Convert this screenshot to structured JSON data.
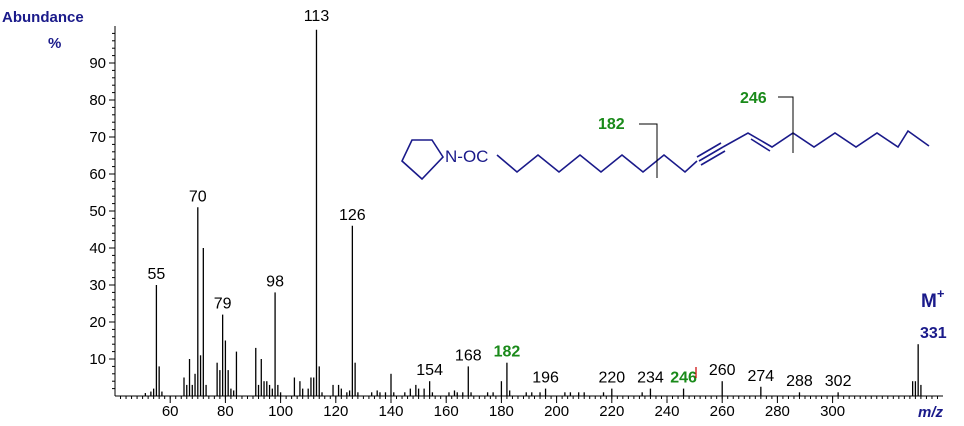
{
  "chart_data": {
    "type": "bar",
    "ylabel": "Abundance",
    "ylabel_unit": "%",
    "xlabel": "m/z",
    "xlim": [
      40,
      340
    ],
    "ylim": [
      0,
      100
    ],
    "x_ticks": [
      60,
      80,
      100,
      120,
      140,
      160,
      180,
      200,
      220,
      240,
      260,
      280,
      300
    ],
    "y_ticks": [
      10,
      20,
      30,
      40,
      50,
      60,
      70,
      80,
      90
    ],
    "peaks": [
      {
        "mz": 51,
        "y": 0.8
      },
      {
        "mz": 53,
        "y": 1.2
      },
      {
        "mz": 54,
        "y": 2.0
      },
      {
        "mz": 55,
        "y": 30
      },
      {
        "mz": 56,
        "y": 8
      },
      {
        "mz": 57,
        "y": 1.2
      },
      {
        "mz": 65,
        "y": 5
      },
      {
        "mz": 66,
        "y": 3
      },
      {
        "mz": 67,
        "y": 10
      },
      {
        "mz": 68,
        "y": 3
      },
      {
        "mz": 69,
        "y": 6
      },
      {
        "mz": 70,
        "y": 51
      },
      {
        "mz": 71,
        "y": 11
      },
      {
        "mz": 72,
        "y": 40
      },
      {
        "mz": 73,
        "y": 3
      },
      {
        "mz": 77,
        "y": 9
      },
      {
        "mz": 78,
        "y": 7
      },
      {
        "mz": 79,
        "y": 22
      },
      {
        "mz": 80,
        "y": 15
      },
      {
        "mz": 81,
        "y": 7
      },
      {
        "mz": 82,
        "y": 2
      },
      {
        "mz": 83,
        "y": 1.5
      },
      {
        "mz": 84,
        "y": 12
      },
      {
        "mz": 91,
        "y": 13
      },
      {
        "mz": 92,
        "y": 3
      },
      {
        "mz": 93,
        "y": 10
      },
      {
        "mz": 94,
        "y": 4
      },
      {
        "mz": 95,
        "y": 4
      },
      {
        "mz": 96,
        "y": 3
      },
      {
        "mz": 97,
        "y": 2
      },
      {
        "mz": 98,
        "y": 28
      },
      {
        "mz": 99,
        "y": 3
      },
      {
        "mz": 100,
        "y": 1
      },
      {
        "mz": 105,
        "y": 5
      },
      {
        "mz": 107,
        "y": 4
      },
      {
        "mz": 108,
        "y": 2
      },
      {
        "mz": 110,
        "y": 2
      },
      {
        "mz": 111,
        "y": 5
      },
      {
        "mz": 112,
        "y": 5
      },
      {
        "mz": 113,
        "y": 99
      },
      {
        "mz": 114,
        "y": 8
      },
      {
        "mz": 115,
        "y": 1
      },
      {
        "mz": 119,
        "y": 3
      },
      {
        "mz": 121,
        "y": 3
      },
      {
        "mz": 122,
        "y": 2
      },
      {
        "mz": 124,
        "y": 1
      },
      {
        "mz": 125,
        "y": 1.5
      },
      {
        "mz": 126,
        "y": 46
      },
      {
        "mz": 127,
        "y": 9
      },
      {
        "mz": 128,
        "y": 1
      },
      {
        "mz": 133,
        "y": 1
      },
      {
        "mz": 135,
        "y": 1.5
      },
      {
        "mz": 136,
        "y": 1
      },
      {
        "mz": 138,
        "y": 1
      },
      {
        "mz": 140,
        "y": 6
      },
      {
        "mz": 141,
        "y": 1
      },
      {
        "mz": 145,
        "y": 1
      },
      {
        "mz": 147,
        "y": 2
      },
      {
        "mz": 149,
        "y": 3
      },
      {
        "mz": 150,
        "y": 2
      },
      {
        "mz": 152,
        "y": 2
      },
      {
        "mz": 154,
        "y": 4
      },
      {
        "mz": 155,
        "y": 1
      },
      {
        "mz": 161,
        "y": 1
      },
      {
        "mz": 163,
        "y": 1.5
      },
      {
        "mz": 164,
        "y": 1
      },
      {
        "mz": 166,
        "y": 1
      },
      {
        "mz": 168,
        "y": 8
      },
      {
        "mz": 169,
        "y": 1
      },
      {
        "mz": 175,
        "y": 1
      },
      {
        "mz": 177,
        "y": 1
      },
      {
        "mz": 180,
        "y": 4
      },
      {
        "mz": 182,
        "y": 9
      },
      {
        "mz": 183,
        "y": 1.5
      },
      {
        "mz": 189,
        "y": 1
      },
      {
        "mz": 191,
        "y": 1
      },
      {
        "mz": 194,
        "y": 1
      },
      {
        "mz": 196,
        "y": 2
      },
      {
        "mz": 203,
        "y": 1
      },
      {
        "mz": 205,
        "y": 1
      },
      {
        "mz": 208,
        "y": 1
      },
      {
        "mz": 210,
        "y": 1
      },
      {
        "mz": 217,
        "y": 1
      },
      {
        "mz": 220,
        "y": 2
      },
      {
        "mz": 231,
        "y": 1
      },
      {
        "mz": 234,
        "y": 2
      },
      {
        "mz": 246,
        "y": 2
      },
      {
        "mz": 260,
        "y": 4
      },
      {
        "mz": 274,
        "y": 2.5
      },
      {
        "mz": 288,
        "y": 1
      },
      {
        "mz": 302,
        "y": 1
      },
      {
        "mz": 329,
        "y": 4
      },
      {
        "mz": 330,
        "y": 4
      },
      {
        "mz": 331,
        "y": 14
      },
      {
        "mz": 332,
        "y": 3
      }
    ],
    "peak_labels": [
      {
        "mz": 55,
        "text": "55",
        "y": 30,
        "highlight": false
      },
      {
        "mz": 70,
        "text": "70",
        "y": 51,
        "highlight": false
      },
      {
        "mz": 79,
        "text": "79",
        "y": 22,
        "highlight": false
      },
      {
        "mz": 98,
        "text": "98",
        "y": 28,
        "highlight": false
      },
      {
        "mz": 113,
        "text": "113",
        "y": 99,
        "highlight": false
      },
      {
        "mz": 126,
        "text": "126",
        "y": 46,
        "highlight": false
      },
      {
        "mz": 154,
        "text": "154",
        "y": 4,
        "highlight": false
      },
      {
        "mz": 168,
        "text": "168",
        "y": 8,
        "highlight": false
      },
      {
        "mz": 182,
        "text": "182",
        "y": 9,
        "highlight": true
      },
      {
        "mz": 196,
        "text": "196",
        "y": 2,
        "highlight": false
      },
      {
        "mz": 220,
        "text": "220",
        "y": 2,
        "highlight": false
      },
      {
        "mz": 234,
        "text": "234",
        "y": 2,
        "highlight": false
      },
      {
        "mz": 246,
        "text": "246",
        "y": 2,
        "highlight": true
      },
      {
        "mz": 260,
        "text": "260",
        "y": 4,
        "highlight": false
      },
      {
        "mz": 274,
        "text": "274",
        "y": 2.5,
        "highlight": false
      },
      {
        "mz": 288,
        "text": "288",
        "y": 1,
        "highlight": false
      },
      {
        "mz": 302,
        "text": "302",
        "y": 1,
        "highlight": false
      }
    ],
    "molecular_ion": {
      "label": "M",
      "charge": "+",
      "mz": "331"
    },
    "colors": {
      "bar": "#000000",
      "highlight_text": "#1a8a1a",
      "title_text": "#1a1a8a",
      "structure": "#1a1a8a",
      "marker": "#cc0000"
    },
    "structure": {
      "group_label": "N-OC",
      "fragment_labels": [
        {
          "text": "182"
        },
        {
          "text": "246"
        }
      ]
    }
  }
}
